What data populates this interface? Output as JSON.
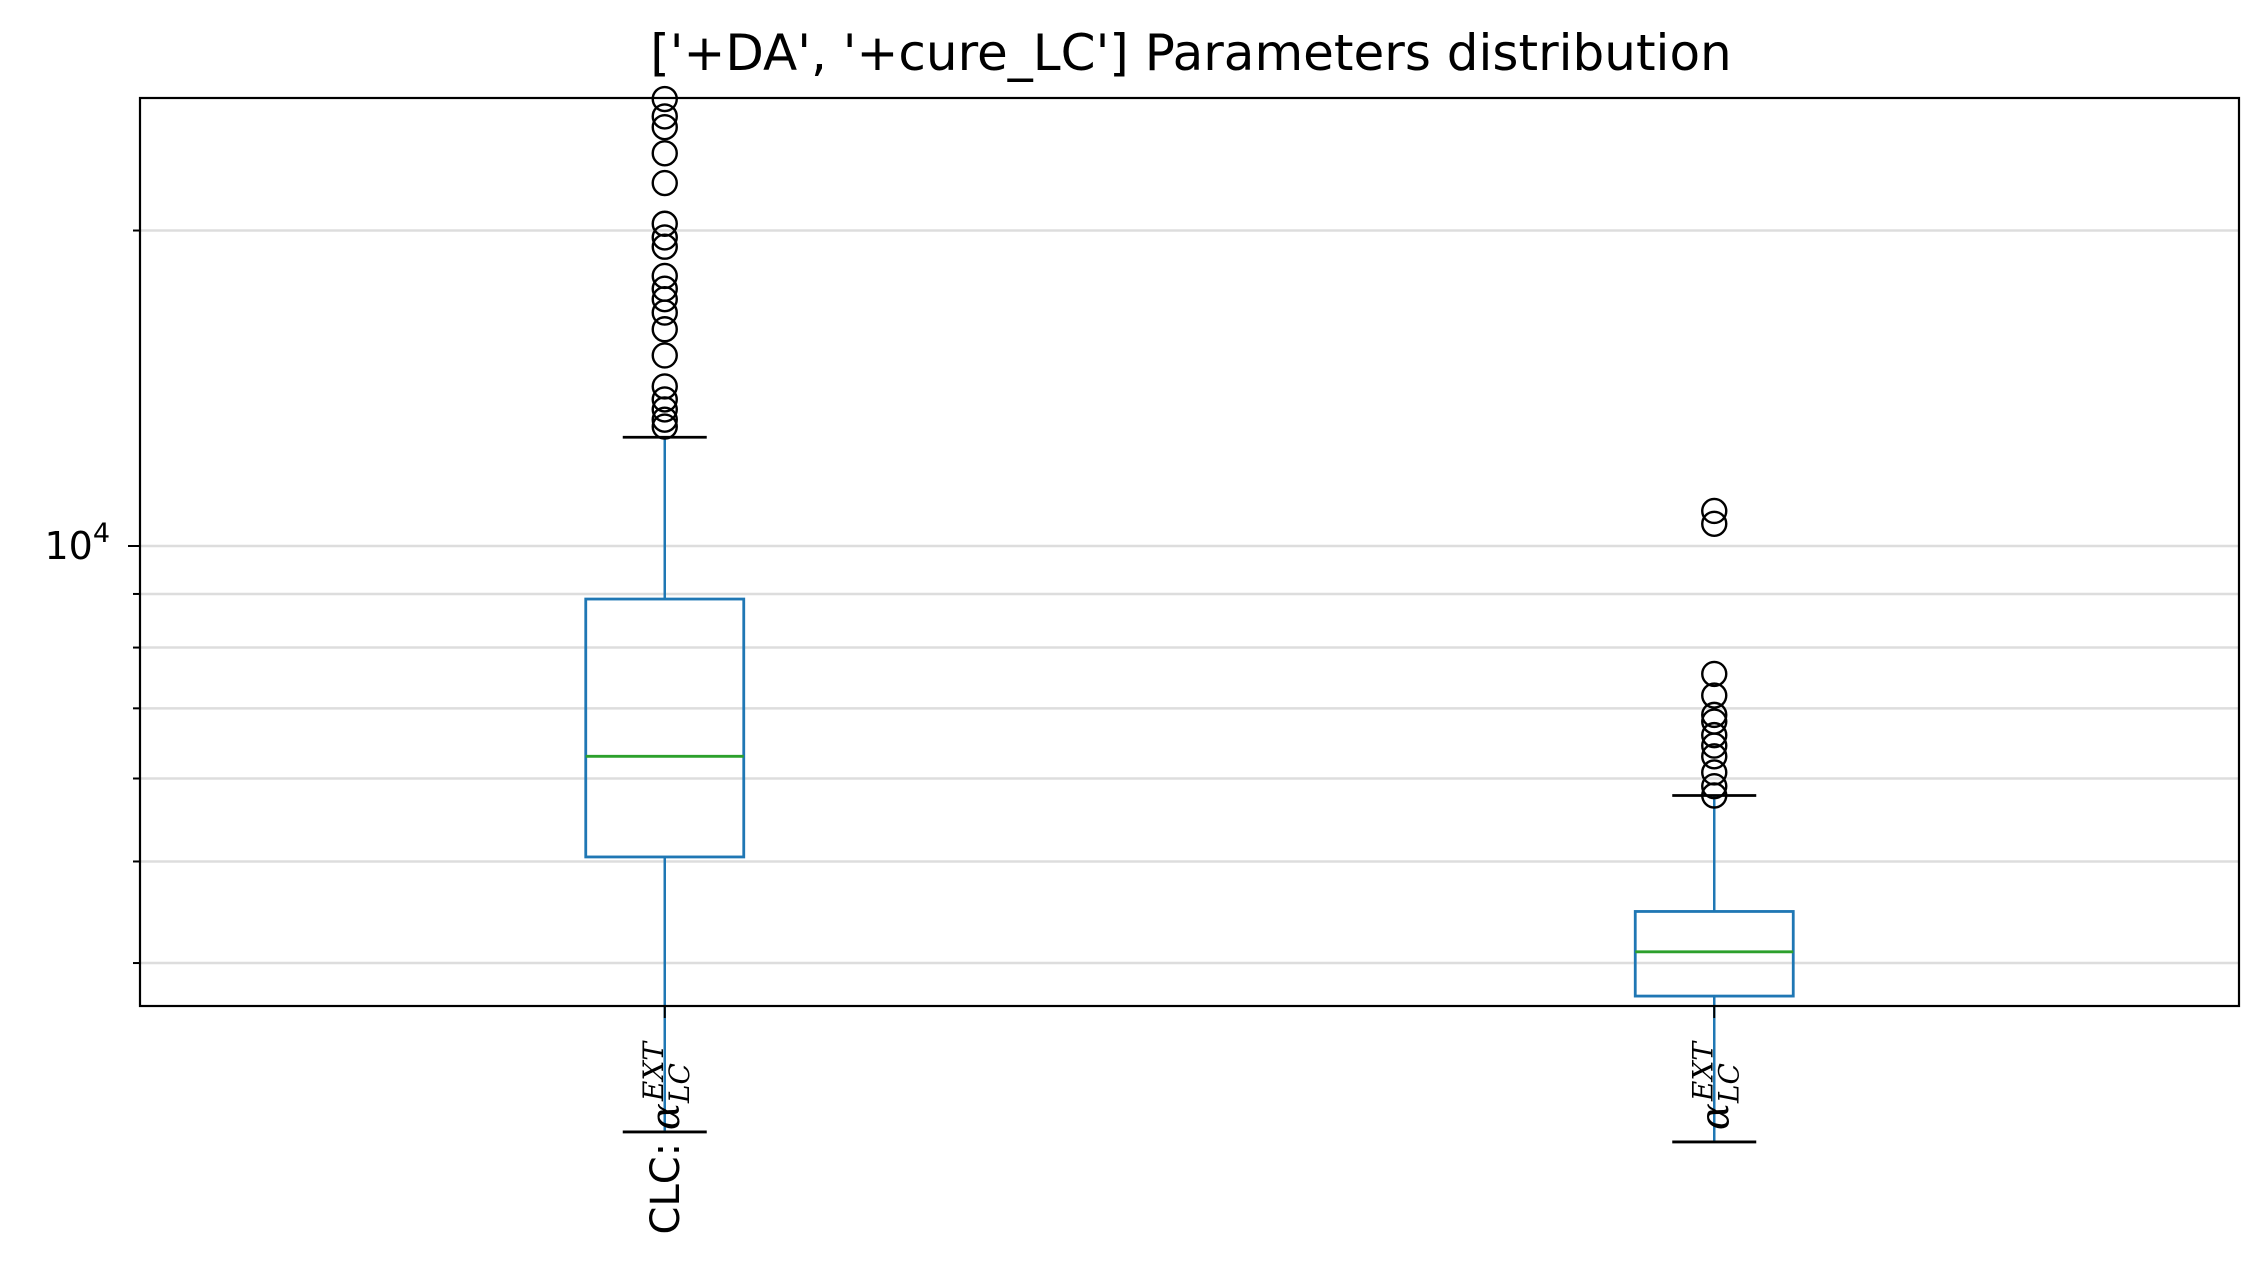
{
  "chart_data": {
    "type": "box",
    "title": "['+DA', '+cure_LC'] Parameters distribution",
    "xlabel": "",
    "ylabel": "",
    "yscale": "log",
    "ylim": [
      2600,
      30000
    ],
    "ytick_labels": [
      {
        "value": 10000,
        "base": "10",
        "exponent": "4"
      }
    ],
    "grid": true,
    "legend": "none",
    "categories": [
      {
        "prefix": "CLC: ",
        "symbol": "α",
        "subscript": "LC",
        "superscript": "EXT"
      },
      {
        "prefix": "",
        "symbol": "α",
        "subscript": "LC",
        "superscript": "EXT"
      }
    ],
    "boxes": [
      {
        "whisker_low": 2760,
        "q1": 5050,
        "median": 6300,
        "q3": 8900,
        "whisker_high": 12700,
        "outliers": [
          13000,
          13200,
          13500,
          13800,
          14200,
          15200,
          16100,
          16700,
          17200,
          17600,
          18100,
          19300,
          19700,
          20300,
          22200,
          23700,
          25100,
          25700,
          26700
        ]
      },
      {
        "whisker_low": 2700,
        "q1": 3720,
        "median": 4100,
        "q3": 4480,
        "whisker_high": 5780,
        "outliers": [
          5780,
          5900,
          6080,
          6300,
          6450,
          6600,
          6800,
          6900,
          7200,
          7550,
          10500,
          10800
        ]
      }
    ],
    "colors": {
      "box": "#1f77b4",
      "median": "#2ca02c",
      "whisker_cap": "#000000",
      "flier": "#000000",
      "grid": "#dddddd",
      "axes": "#000000"
    }
  }
}
